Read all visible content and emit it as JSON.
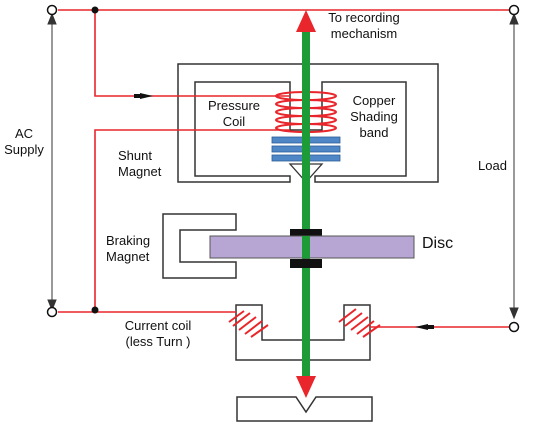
{
  "labels": {
    "to_recording": "To recording",
    "mechanism": "mechanism",
    "pressure": "Pressure",
    "coil": "Coil",
    "copper": "Copper",
    "shading": "Shading",
    "band": "band",
    "shunt": "Shunt",
    "magnet": "Magnet",
    "ac": "AC",
    "supply": "Supply",
    "load": "Load",
    "braking": "Braking",
    "braking_magnet": "Magnet",
    "disc": "Disc",
    "current_coil": "Current coil",
    "less_turn": "(less Turn )"
  },
  "colors": {
    "wire": "#e8262b",
    "shaft": "#1c9b36",
    "arrow": "#e8262b",
    "disc": "#b7a6d3",
    "shading_band": "#4f86c6",
    "magnet_outline": "#333333",
    "node": "#111111"
  }
}
